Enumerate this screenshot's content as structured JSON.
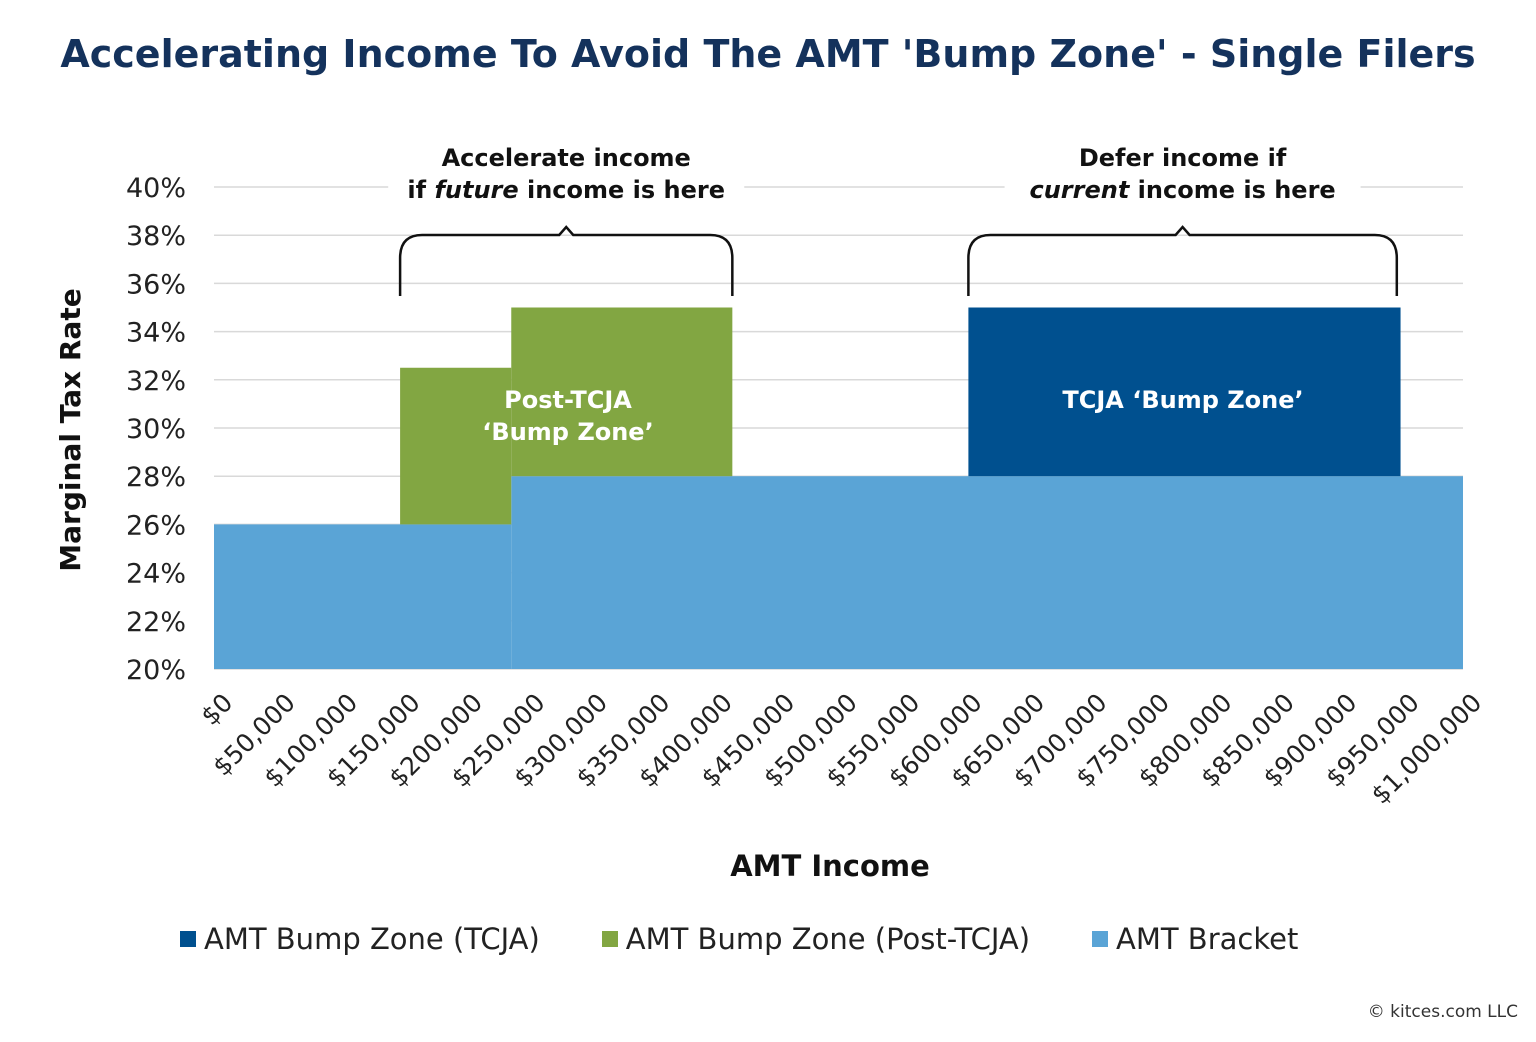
{
  "chart_data": {
    "type": "area",
    "title": "Accelerating Income To Avoid The AMT 'Bump Zone' - Single Filers",
    "xlabel": "AMT Income",
    "ylabel": "Marginal Tax Rate",
    "xlim": [
      0,
      1000000
    ],
    "ylim": [
      20,
      40
    ],
    "grid": true,
    "x_ticks": [
      "$0",
      "$50,000",
      "$100,000",
      "$150,000",
      "$200,000",
      "$250,000",
      "$300,000",
      "$350,000",
      "$400,000",
      "$450,000",
      "$500,000",
      "$550,000",
      "$600,000",
      "$650,000",
      "$700,000",
      "$750,000",
      "$800,000",
      "$850,000",
      "$900,000",
      "$950,000",
      "$1,000,000"
    ],
    "y_ticks": [
      "20%",
      "22%",
      "24%",
      "26%",
      "28%",
      "30%",
      "32%",
      "34%",
      "36%",
      "38%",
      "40%"
    ],
    "legend_position": "bottom",
    "series": [
      {
        "name": "AMT Bump Zone (TCJA)",
        "color": "#00508f",
        "segments": [
          {
            "x0": 604000,
            "x1": 950000,
            "y0": 28,
            "y1": 35
          }
        ]
      },
      {
        "name": "AMT Bump Zone (Post-TCJA)",
        "color": "#82a642",
        "segments": [
          {
            "x0": 149000,
            "x1": 238000,
            "y0": 26,
            "y1": 32.5
          },
          {
            "x0": 238000,
            "x1": 415000,
            "y0": 28,
            "y1": 35
          }
        ]
      },
      {
        "name": "AMT Bracket",
        "color": "#5aa4d6",
        "segments": [
          {
            "x0": 0,
            "x1": 238000,
            "y0": 20,
            "y1": 26
          },
          {
            "x0": 238000,
            "x1": 1000000,
            "y0": 20,
            "y1": 28
          }
        ]
      }
    ],
    "annotations": {
      "post_label": [
        "Post-TCJA",
        "‘Bump Zone’"
      ],
      "tcja_label": "TCJA ‘Bump Zone’",
      "left_brace": {
        "x0": 149000,
        "x1": 415000,
        "line1": "Accelerate income",
        "line2_pre": "if ",
        "line2_em": "future",
        "line2_post": " income is here"
      },
      "right_brace": {
        "x0": 604000,
        "x1": 947000,
        "line1": "Defer income if",
        "line2_pre": "",
        "line2_em": "current",
        "line2_post": " income is here"
      }
    }
  },
  "credit": "© kitces.com LLC"
}
